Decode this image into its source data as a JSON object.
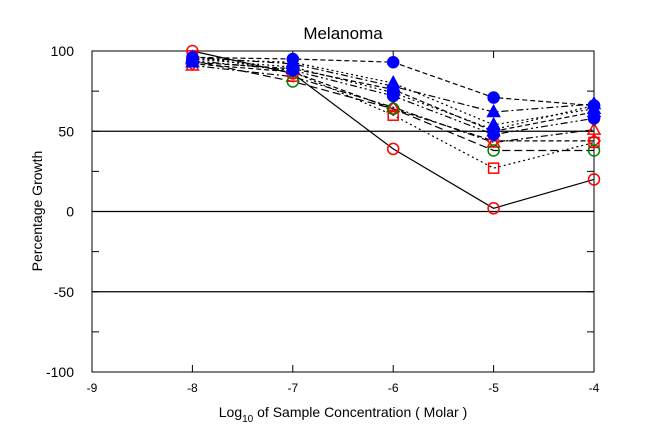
{
  "chart_data": {
    "type": "line",
    "title": "Melanoma",
    "xlabel_prefix": "Log",
    "xlabel_sub": "10",
    "xlabel_suffix": " of Sample Concentration ( Molar )",
    "ylabel": "Percentage Growth",
    "xlim": [
      -9,
      -4
    ],
    "ylim": [
      -100,
      100
    ],
    "xticks": [
      -9,
      -8,
      -7,
      -6,
      -5,
      -4
    ],
    "yticks": [
      -100,
      -50,
      0,
      50,
      100
    ],
    "reference_lines": [
      50,
      0,
      -50
    ],
    "grid": false,
    "series": [
      {
        "x": [
          -8,
          -7,
          -6,
          -5,
          -4
        ],
        "y": [
          100,
          86,
          39,
          2,
          20
        ],
        "marker": "circle-open",
        "color": "#ff0000",
        "dash": "solid"
      },
      {
        "x": [
          -8,
          -7,
          -6,
          -5,
          -4
        ],
        "y": [
          97,
          87,
          60,
          27,
          43
        ],
        "marker": "square-open",
        "color": "#ff0000",
        "dash": "dotted"
      },
      {
        "x": [
          -8,
          -7,
          -6,
          -5,
          -4
        ],
        "y": [
          91,
          84,
          65,
          43,
          51
        ],
        "marker": "triangle-open",
        "color": "#ff0000",
        "dash": "dashdot"
      },
      {
        "x": [
          -8,
          -7,
          -6,
          -5,
          -4
        ],
        "y": [
          92,
          87,
          64,
          44,
          44
        ],
        "marker": "diamond-open",
        "color": "#ff0000",
        "dash": "dashed"
      },
      {
        "x": [
          -8,
          -7,
          -6,
          -5,
          -4
        ],
        "y": [
          94,
          81,
          64,
          38,
          38
        ],
        "marker": "circle-open",
        "color": "#008000",
        "dash": "longdash"
      },
      {
        "x": [
          -8,
          -7,
          -6,
          -5,
          -4
        ],
        "y": [
          96,
          95,
          93,
          71,
          66
        ],
        "marker": "circle-filled",
        "color": "#0000ff",
        "dash": "dashed"
      },
      {
        "x": [
          -8,
          -7,
          -6,
          -5,
          -4
        ],
        "y": [
          96,
          92,
          78,
          62,
          67
        ],
        "marker": "triangle-filled",
        "color": "#0000ff",
        "dash": "dashdot"
      },
      {
        "x": [
          -8,
          -7,
          -6,
          -5,
          -4
        ],
        "y": [
          95,
          90,
          74,
          51,
          66
        ],
        "marker": "circle-filled",
        "color": "#0000ff",
        "dash": "dotted"
      },
      {
        "x": [
          -8,
          -7,
          -6,
          -5,
          -4
        ],
        "y": [
          94,
          88,
          72,
          48,
          58
        ],
        "marker": "circle-filled",
        "color": "#0000ff",
        "dash": "dashdotdot"
      },
      {
        "x": [
          -8,
          -7,
          -6,
          -5,
          -4
        ],
        "y": [
          93,
          89,
          76,
          50,
          62
        ],
        "marker": "triangle-filled",
        "color": "#0000ff",
        "dash": "dashed"
      },
      {
        "x": [
          -8,
          -7,
          -6,
          -5,
          -4
        ],
        "y": [
          95,
          93,
          80,
          54,
          64
        ],
        "marker": "triangle-filled",
        "color": "#0000ff",
        "dash": "dotted"
      }
    ]
  }
}
